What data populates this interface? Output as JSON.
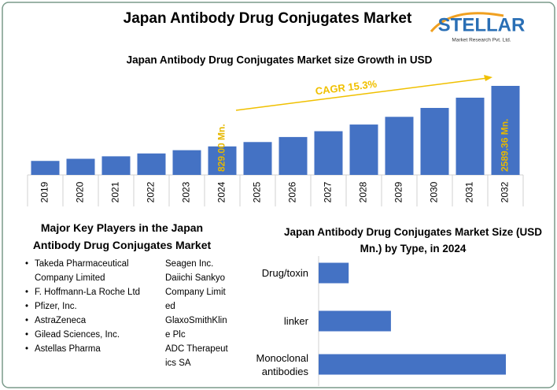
{
  "header": {
    "title": "Japan Antibody Drug Conjugates Market",
    "logo": {
      "name": "STELLAR",
      "tagline": "Market Research Pvt. Ltd."
    }
  },
  "chart_data": [
    {
      "type": "bar",
      "title": "Japan Antibody Drug Conjugates Market size Growth in USD",
      "categories": [
        "2019",
        "2020",
        "2021",
        "2022",
        "2023",
        "2024",
        "2025",
        "2026",
        "2027",
        "2028",
        "2029",
        "2030",
        "2031",
        "2032"
      ],
      "values": [
        407,
        469,
        541,
        624,
        719,
        829,
        956,
        1102,
        1271,
        1465,
        1689,
        1948,
        2246,
        2589.36
      ],
      "value_labels": [
        null,
        null,
        null,
        null,
        null,
        "829.00 Mn.",
        null,
        null,
        null,
        null,
        null,
        null,
        null,
        "2589.36 Mn."
      ],
      "annotation": "CAGR 15.3%",
      "color": "#4472c4",
      "label_color": "#e6b800"
    },
    {
      "type": "hbar",
      "title": "Japan Antibody Drug Conjugates Market Size (USD Mn.) by Type, in 2024",
      "categories": [
        "Drug/toxin",
        "linker",
        "Monoclonal antibodies"
      ],
      "values": [
        86,
        207,
        536
      ],
      "color": "#4472c4"
    }
  ],
  "key_players": {
    "title": "Major Key Players in the Japan Antibody Drug Conjugates Market",
    "left": [
      "Takeda Pharmaceutical Company Limited",
      "F. Hoffmann-La Roche Ltd",
      "Pfizer, Inc.",
      "AstraZeneca",
      "Gilead Sciences, Inc.",
      "Astellas Pharma"
    ],
    "right": [
      "Seagen Inc.",
      "Daiichi Sankyo Company Limited",
      "GlaxoSmithKline Plc",
      "ADC Therapeutics SA"
    ]
  }
}
